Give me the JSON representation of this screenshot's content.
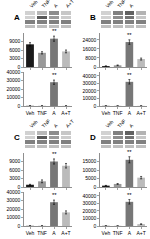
{
  "chart_data": [
    {
      "type": "heatmap",
      "title": "A",
      "categories": [
        "Veh",
        "TNF",
        "A",
        "A+T"
      ],
      "cells": [
        [
          0.82,
          0.72,
          0.55,
          0.78
        ],
        [
          0.82,
          0.35,
          0.6,
          0.8
        ],
        [
          0.5,
          0.5,
          0.5,
          0.5
        ],
        [
          0.75,
          0.75,
          0.75,
          0.75
        ]
      ],
      "zlim": [
        0,
        1
      ],
      "tick_labels": "x"
    },
    {
      "type": "bar",
      "categories": [
        "Veh",
        "TNF",
        "A",
        "A+T"
      ],
      "values": [
        8000,
        5000,
        10000,
        5500
      ],
      "yerr": [
        600,
        400,
        900,
        500
      ],
      "colors": [
        "#1a1a1a",
        "#999999",
        "#777777",
        "#bbbbbb"
      ],
      "ylim": [
        0,
        12000
      ],
      "yticks": [
        0,
        3000,
        6000,
        9000
      ],
      "grid": false,
      "tick_labels": "y",
      "annotations": [
        {
          "x": "A",
          "text": "**"
        }
      ]
    },
    {
      "type": "bar",
      "categories": [
        "Veh",
        "TNF",
        "A",
        "A+T"
      ],
      "values": [
        200,
        200,
        28000,
        200
      ],
      "yerr": [
        50,
        50,
        2500,
        50
      ],
      "colors": [
        "#1a1a1a",
        "#999999",
        "#777777",
        "#bbbbbb"
      ],
      "ylim": [
        0,
        40000
      ],
      "yticks": [
        0,
        10000,
        20000,
        30000,
        40000
      ],
      "grid": false,
      "annotations": [
        {
          "x": "A",
          "text": "**"
        }
      ]
    },
    {
      "type": "heatmap",
      "title": "B",
      "categories": [
        "Veh",
        "TNF",
        "A",
        "A+T"
      ],
      "cells": [
        [
          0.82,
          0.5,
          0.38,
          0.7
        ],
        [
          0.82,
          0.55,
          0.45,
          0.78
        ],
        [
          0.5,
          0.5,
          0.5,
          0.5
        ],
        [
          0.75,
          0.75,
          0.75,
          0.75
        ]
      ],
      "zlim": [
        0,
        1
      ],
      "tick_labels": "x"
    },
    {
      "type": "bar",
      "categories": [
        "Veh",
        "TNF",
        "A",
        "A+T"
      ],
      "values": [
        800,
        1500,
        22000,
        7000
      ],
      "yerr": [
        150,
        300,
        2000,
        900
      ],
      "colors": [
        "#1a1a1a",
        "#999999",
        "#777777",
        "#bbbbbb"
      ],
      "ylim": [
        0,
        30000
      ],
      "yticks": [
        0,
        8000,
        16000,
        24000
      ],
      "grid": false,
      "tick_labels": "y",
      "annotations": [
        {
          "x": "A",
          "text": "**"
        }
      ]
    },
    {
      "type": "bar",
      "categories": [
        "Veh",
        "TNF",
        "A",
        "A+T"
      ],
      "values": [
        200,
        200,
        32000,
        200
      ],
      "yerr": [
        50,
        50,
        3000,
        50
      ],
      "colors": [
        "#1a1a1a",
        "#999999",
        "#777777",
        "#bbbbbb"
      ],
      "ylim": [
        0,
        45000
      ],
      "yticks": [
        0,
        10000,
        20000,
        30000,
        40000
      ],
      "grid": false,
      "annotations": [
        {
          "x": "A",
          "text": "**"
        }
      ]
    },
    {
      "type": "heatmap",
      "title": "C",
      "categories": [
        "Veh",
        "TNF",
        "A",
        "A+T"
      ],
      "cells": [
        [
          0.82,
          0.72,
          0.55,
          0.78
        ],
        [
          0.82,
          0.35,
          0.6,
          0.8
        ],
        [
          0.5,
          0.5,
          0.5,
          0.5
        ],
        [
          0.75,
          0.75,
          0.75,
          0.75
        ]
      ],
      "zlim": [
        0,
        1
      ],
      "tick_labels": "x"
    },
    {
      "type": "bar",
      "categories": [
        "Veh",
        "TNF",
        "A",
        "A+T"
      ],
      "values": [
        800,
        2000,
        9000,
        7500
      ],
      "yerr": [
        150,
        500,
        900,
        800
      ],
      "colors": [
        "#1a1a1a",
        "#999999",
        "#777777",
        "#bbbbbb"
      ],
      "ylim": [
        0,
        12000
      ],
      "yticks": [
        0,
        3000,
        6000,
        9000
      ],
      "grid": false,
      "tick_labels": "y",
      "annotations": [
        {
          "x": "A",
          "text": "**"
        }
      ]
    },
    {
      "type": "bar",
      "categories": [
        "Veh",
        "TNF",
        "A",
        "A+T"
      ],
      "values": [
        200,
        200,
        28000,
        16000
      ],
      "yerr": [
        50,
        50,
        2500,
        1800
      ],
      "colors": [
        "#1a1a1a",
        "#999999",
        "#777777",
        "#bbbbbb"
      ],
      "ylim": [
        0,
        40000
      ],
      "yticks": [
        0,
        10000,
        20000,
        30000,
        40000
      ],
      "grid": false,
      "annotations": [
        {
          "x": "A",
          "text": "**"
        }
      ]
    },
    {
      "type": "heatmap",
      "title": "D",
      "categories": [
        "Veh",
        "TNF",
        "A",
        "A+T"
      ],
      "cells": [
        [
          0.82,
          0.5,
          0.38,
          0.7
        ],
        [
          0.82,
          0.55,
          0.45,
          0.78
        ],
        [
          0.5,
          0.5,
          0.5,
          0.5
        ],
        [
          0.75,
          0.75,
          0.75,
          0.75
        ]
      ],
      "zlim": [
        0,
        1
      ],
      "tick_labels": "x"
    },
    {
      "type": "bar",
      "categories": [
        "Veh",
        "TNF",
        "A",
        "A+T"
      ],
      "values": [
        800,
        1800,
        16000,
        5500
      ],
      "yerr": [
        150,
        250,
        1800,
        700
      ],
      "colors": [
        "#1a1a1a",
        "#999999",
        "#777777",
        "#bbbbbb"
      ],
      "ylim": [
        0,
        20000
      ],
      "yticks": [
        0,
        5000,
        10000,
        15000
      ],
      "grid": false,
      "tick_labels": "y",
      "annotations": [
        {
          "x": "A",
          "text": "**"
        }
      ]
    },
    {
      "type": "bar",
      "categories": [
        "Veh",
        "TNF",
        "A",
        "A+T"
      ],
      "values": [
        200,
        200,
        32000,
        2500
      ],
      "yerr": [
        50,
        50,
        3000,
        400
      ],
      "colors": [
        "#1a1a1a",
        "#999999",
        "#777777",
        "#bbbbbb"
      ],
      "ylim": [
        0,
        45000
      ],
      "yticks": [
        0,
        10000,
        20000,
        30000,
        40000
      ],
      "grid": false,
      "annotations": [
        {
          "x": "A",
          "text": "**"
        }
      ]
    }
  ]
}
